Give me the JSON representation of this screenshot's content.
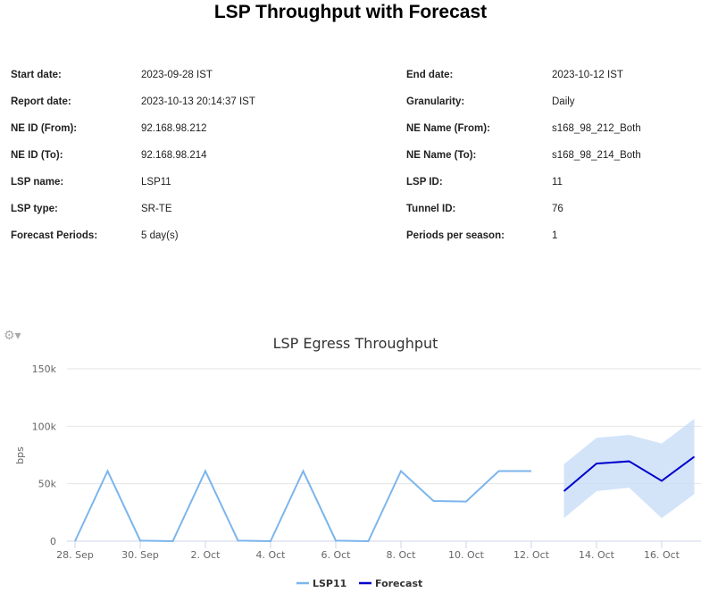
{
  "report": {
    "title": "LSP Throughput with Forecast",
    "fields": [
      {
        "label": "Start date:",
        "value": "2023-09-28 IST",
        "label2": "End date:",
        "value2": "2023-10-12 IST"
      },
      {
        "label": "Report date:",
        "value": "2023-10-13 20:14:37 IST",
        "label2": "Granularity:",
        "value2": "Daily"
      },
      {
        "label": "NE ID (From):",
        "value": "92.168.98.212",
        "label2": "NE Name (From):",
        "value2": "s168_98_212_Both"
      },
      {
        "label": "NE ID (To):",
        "value": "92.168.98.214",
        "label2": "NE Name (To):",
        "value2": "s168_98_214_Both"
      },
      {
        "label": "LSP name:",
        "value": "LSP11",
        "label2": "LSP ID:",
        "value2": "11"
      },
      {
        "label": "LSP type:",
        "value": "SR-TE",
        "label2": "Tunnel ID:",
        "value2": "76"
      },
      {
        "label": "Forecast Periods:",
        "value": "5 day(s)",
        "label2": "Periods per season:",
        "value2": "1"
      }
    ]
  },
  "chart_data": {
    "type": "line",
    "title": "LSP Egress Throughput",
    "ylabel": "bps",
    "xlabel": "",
    "ylim": [
      0,
      150000
    ],
    "yticks": [
      "0",
      "50k",
      "100k",
      "150k"
    ],
    "xticks": [
      "28. Sep",
      "30. Sep",
      "2. Oct",
      "4. Oct",
      "6. Oct",
      "8. Oct",
      "10. Oct",
      "12. Oct",
      "14. Oct",
      "16. Oct"
    ],
    "grid": true,
    "legend_position": "bottom",
    "series": [
      {
        "name": "LSP11",
        "color": "#7cb5ec",
        "x": [
          "2023-09-28",
          "2023-09-29",
          "2023-09-30",
          "2023-10-01",
          "2023-10-02",
          "2023-10-03",
          "2023-10-04",
          "2023-10-05",
          "2023-10-06",
          "2023-10-07",
          "2023-10-08",
          "2023-10-09",
          "2023-10-10",
          "2023-10-11",
          "2023-10-12"
        ],
        "values": [
          0,
          61000,
          500,
          0,
          61000,
          500,
          0,
          61000,
          500,
          0,
          61000,
          35000,
          34500,
          61000,
          61000
        ]
      },
      {
        "name": "Forecast",
        "color": "#0000cc",
        "x": [
          "2023-10-13",
          "2023-10-14",
          "2023-10-15",
          "2023-10-16",
          "2023-10-17"
        ],
        "values": [
          43500,
          67500,
          69500,
          52500,
          73500
        ],
        "band_upper": [
          67000,
          90000,
          92500,
          85000,
          106500
        ],
        "band_lower": [
          20000,
          43500,
          46500,
          20000,
          41000
        ],
        "band_color": "#c8ddf8"
      }
    ]
  }
}
